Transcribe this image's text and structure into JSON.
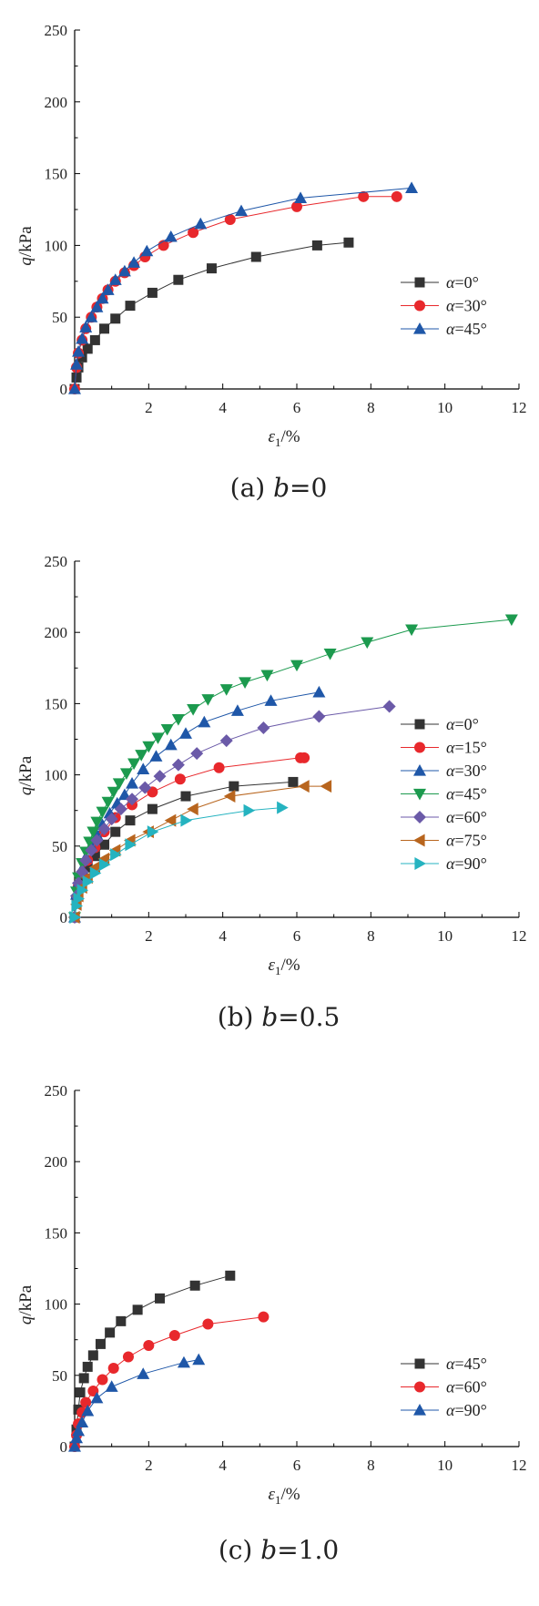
{
  "chart_data": [
    {
      "type": "line",
      "caption": {
        "prefix": "(a) ",
        "var": "b",
        "suffix": "=0"
      },
      "xlabel": {
        "sym": "ε",
        "sub": "1",
        "unit": "/%"
      },
      "ylabel": {
        "sym": "q",
        "unit": "/kPa"
      },
      "xlim": [
        0,
        12
      ],
      "ylim": [
        0,
        250
      ],
      "xticks": [
        "2",
        "4",
        "6",
        "8",
        "10",
        "12"
      ],
      "yticks": [
        "0",
        "50",
        "100",
        "150",
        "200",
        "250"
      ],
      "legend_position": "center-right",
      "series": [
        {
          "name": "α=0°",
          "color": "#333333",
          "marker": "square",
          "x": [
            0,
            0.05,
            0.1,
            0.2,
            0.35,
            0.55,
            0.8,
            1.1,
            1.5,
            2.1,
            2.8,
            3.7,
            4.9,
            6.55,
            7.4
          ],
          "y": [
            0,
            8,
            15,
            22,
            28,
            34,
            42,
            49,
            58,
            67,
            76,
            84,
            92,
            100,
            102
          ]
        },
        {
          "name": "α=30°",
          "color": "#e8282c",
          "marker": "circle",
          "x": [
            0,
            0.05,
            0.1,
            0.2,
            0.3,
            0.45,
            0.6,
            0.75,
            0.9,
            1.1,
            1.35,
            1.6,
            1.9,
            2.4,
            3.2,
            4.2,
            6.0,
            7.8,
            8.7
          ],
          "y": [
            0,
            15,
            25,
            34,
            42,
            50,
            57,
            63,
            69,
            75,
            81,
            86,
            92,
            100,
            109,
            118,
            127,
            134,
            134
          ]
        },
        {
          "name": "α=45°",
          "color": "#1f57a8",
          "marker": "triangle-up",
          "x": [
            0,
            0.05,
            0.1,
            0.2,
            0.3,
            0.45,
            0.6,
            0.75,
            0.9,
            1.1,
            1.35,
            1.6,
            1.95,
            2.6,
            3.4,
            4.5,
            6.1,
            9.1
          ],
          "y": [
            0,
            17,
            26,
            35,
            43,
            50,
            57,
            63,
            69,
            76,
            82,
            88,
            96,
            106,
            115,
            124,
            133,
            140
          ]
        }
      ]
    },
    {
      "type": "line",
      "caption": {
        "prefix": "(b) ",
        "var": "b",
        "suffix": "=0.5"
      },
      "xlabel": {
        "sym": "ε",
        "sub": "1",
        "unit": "/%"
      },
      "ylabel": {
        "sym": "q",
        "unit": "/kPa"
      },
      "xlim": [
        0,
        12
      ],
      "ylim": [
        0,
        250
      ],
      "xticks": [
        "2",
        "4",
        "6",
        "8",
        "10",
        "12"
      ],
      "yticks": [
        "0",
        "50",
        "100",
        "150",
        "200",
        "250"
      ],
      "legend_position": "center-right",
      "series": [
        {
          "name": "α=0°",
          "color": "#333333",
          "marker": "square",
          "x": [
            0,
            0.05,
            0.1,
            0.2,
            0.35,
            0.55,
            0.8,
            1.1,
            1.5,
            2.1,
            3.0,
            4.3,
            5.9
          ],
          "y": [
            0,
            12,
            20,
            28,
            35,
            43,
            51,
            60,
            68,
            76,
            85,
            92,
            95
          ]
        },
        {
          "name": "α=15°",
          "color": "#e8282c",
          "marker": "circle",
          "x": [
            0,
            0.05,
            0.1,
            0.2,
            0.35,
            0.55,
            0.8,
            1.1,
            1.55,
            2.1,
            2.85,
            3.9,
            6.1,
            6.2
          ],
          "y": [
            0,
            14,
            22,
            31,
            40,
            49,
            60,
            70,
            79,
            88,
            97,
            105,
            112,
            112
          ]
        },
        {
          "name": "α=30°",
          "color": "#1f57a8",
          "marker": "triangle-up",
          "x": [
            0,
            0.05,
            0.1,
            0.2,
            0.3,
            0.45,
            0.6,
            0.75,
            0.95,
            1.15,
            1.35,
            1.55,
            1.85,
            2.2,
            2.6,
            3.0,
            3.5,
            4.4,
            5.3,
            6.6
          ],
          "y": [
            0,
            16,
            24,
            34,
            42,
            50,
            58,
            65,
            73,
            80,
            86,
            94,
            104,
            113,
            121,
            129,
            137,
            145,
            152,
            158
          ]
        },
        {
          "name": "α=45°",
          "color": "#1c9a4e",
          "marker": "triangle-down",
          "x": [
            0,
            0.05,
            0.1,
            0.2,
            0.3,
            0.4,
            0.5,
            0.6,
            0.75,
            0.9,
            1.05,
            1.2,
            1.4,
            1.6,
            1.8,
            2.0,
            2.25,
            2.5,
            2.8,
            3.2,
            3.6,
            4.1,
            4.6,
            5.2,
            6.0,
            6.9,
            7.9,
            9.1,
            11.8
          ],
          "y": [
            0,
            18,
            28,
            38,
            46,
            53,
            60,
            67,
            74,
            81,
            88,
            94,
            101,
            108,
            114,
            120,
            126,
            132,
            139,
            146,
            153,
            160,
            165,
            170,
            177,
            185,
            193,
            202,
            209
          ]
        },
        {
          "name": "α=60°",
          "color": "#6b5aa8",
          "marker": "diamond",
          "x": [
            0,
            0.05,
            0.1,
            0.2,
            0.3,
            0.45,
            0.6,
            0.8,
            1.0,
            1.25,
            1.55,
            1.9,
            2.3,
            2.8,
            3.3,
            4.1,
            5.1,
            6.6,
            8.5
          ],
          "y": [
            0,
            15,
            24,
            32,
            40,
            47,
            54,
            62,
            69,
            76,
            83,
            91,
            99,
            107,
            115,
            124,
            133,
            141,
            148
          ]
        },
        {
          "name": "α=75°",
          "color": "#b8651e",
          "marker": "triangle-left",
          "x": [
            0,
            0.05,
            0.1,
            0.2,
            0.35,
            0.55,
            0.8,
            1.1,
            1.5,
            2.0,
            2.6,
            3.2,
            4.2,
            6.2,
            6.8
          ],
          "y": [
            0,
            9,
            15,
            21,
            28,
            35,
            41,
            47,
            54,
            60,
            68,
            76,
            85,
            92,
            92
          ]
        },
        {
          "name": "α=90°",
          "color": "#25b3c0",
          "marker": "triangle-right",
          "x": [
            0,
            0.05,
            0.1,
            0.2,
            0.35,
            0.55,
            0.8,
            1.1,
            1.5,
            2.1,
            3.0,
            4.7,
            5.6
          ],
          "y": [
            0,
            8,
            13,
            19,
            25,
            31,
            37,
            44,
            51,
            60,
            68,
            75,
            77
          ]
        }
      ]
    },
    {
      "type": "line",
      "caption": {
        "prefix": "(c) ",
        "var": "b",
        "suffix": "=1.0"
      },
      "xlabel": {
        "sym": "ε",
        "sub": "1",
        "unit": "/%"
      },
      "ylabel": {
        "sym": "q",
        "unit": "/kPa"
      },
      "xlim": [
        0,
        12
      ],
      "ylim": [
        0,
        250
      ],
      "xticks": [
        "2",
        "4",
        "6",
        "8",
        "10",
        "12"
      ],
      "yticks": [
        "0",
        "50",
        "100",
        "150",
        "200",
        "250"
      ],
      "legend_position": "center-right",
      "series": [
        {
          "name": "α=45°",
          "color": "#333333",
          "marker": "square",
          "x": [
            0,
            0.05,
            0.1,
            0.15,
            0.25,
            0.35,
            0.5,
            0.7,
            0.95,
            1.25,
            1.7,
            2.3,
            3.25,
            4.2
          ],
          "y": [
            0,
            12,
            26,
            38,
            48,
            56,
            64,
            72,
            80,
            88,
            96,
            104,
            113,
            120
          ]
        },
        {
          "name": "α=60°",
          "color": "#e8282c",
          "marker": "circle",
          "x": [
            0,
            0.05,
            0.1,
            0.2,
            0.3,
            0.5,
            0.75,
            1.05,
            1.45,
            2.0,
            2.7,
            3.6,
            5.1
          ],
          "y": [
            0,
            8,
            16,
            24,
            31,
            39,
            47,
            55,
            63,
            71,
            78,
            86,
            91
          ]
        },
        {
          "name": "α=90°",
          "color": "#1f57a8",
          "marker": "triangle-up",
          "x": [
            0,
            0.05,
            0.1,
            0.2,
            0.35,
            0.6,
            1.0,
            1.85,
            2.95,
            3.35
          ],
          "y": [
            0,
            6,
            11,
            17,
            25,
            34,
            42,
            51,
            59,
            61
          ]
        }
      ]
    }
  ]
}
